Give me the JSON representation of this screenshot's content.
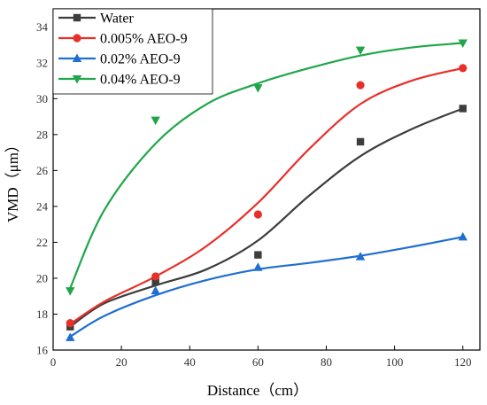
{
  "chart_data": {
    "type": "scatter",
    "title": "",
    "xlabel": "Distance（cm）",
    "ylabel": "VMD（μm）",
    "xlim": [
      0,
      125
    ],
    "ylim": [
      16,
      35
    ],
    "xticks": [
      0,
      20,
      40,
      60,
      80,
      100,
      120
    ],
    "yticks": [
      16,
      18,
      20,
      22,
      24,
      26,
      28,
      30,
      32,
      34
    ],
    "x": [
      5,
      30,
      60,
      90,
      120
    ],
    "grid": false,
    "legend_position": "top-left",
    "fitted_curves": true,
    "series": [
      {
        "name": "Water",
        "marker": "square",
        "color": "#3d3d3d",
        "values": [
          17.3,
          19.8,
          21.3,
          27.6,
          29.45
        ],
        "fit": [
          [
            5,
            17.3
          ],
          [
            15,
            18.6
          ],
          [
            30,
            19.6
          ],
          [
            45,
            20.5
          ],
          [
            60,
            22.1
          ],
          [
            75,
            24.6
          ],
          [
            90,
            26.8
          ],
          [
            105,
            28.3
          ],
          [
            120,
            29.45
          ]
        ]
      },
      {
        "name": "0.005% AEO-9",
        "marker": "circle",
        "color": "#e8302a",
        "values": [
          17.5,
          20.1,
          23.55,
          30.75,
          31.7
        ],
        "fit": [
          [
            5,
            17.45
          ],
          [
            15,
            18.7
          ],
          [
            30,
            20.1
          ],
          [
            45,
            21.8
          ],
          [
            60,
            24.2
          ],
          [
            75,
            27.2
          ],
          [
            90,
            29.7
          ],
          [
            105,
            31.0
          ],
          [
            120,
            31.7
          ]
        ]
      },
      {
        "name": "0.02% AEO-9",
        "marker": "triangle-up",
        "color": "#1f6fd1",
        "values": [
          16.7,
          19.3,
          20.6,
          21.2,
          22.3
        ],
        "fit": [
          [
            5,
            16.75
          ],
          [
            15,
            17.9
          ],
          [
            30,
            19.05
          ],
          [
            45,
            19.9
          ],
          [
            60,
            20.5
          ],
          [
            75,
            20.85
          ],
          [
            90,
            21.25
          ],
          [
            105,
            21.75
          ],
          [
            120,
            22.3
          ]
        ]
      },
      {
        "name": "0.04% AEO-9",
        "marker": "triangle-down",
        "color": "#1fa64a",
        "values": [
          19.3,
          28.8,
          30.6,
          32.7,
          33.1
        ],
        "fit": [
          [
            5,
            19.45
          ],
          [
            15,
            23.8
          ],
          [
            30,
            27.5
          ],
          [
            45,
            29.7
          ],
          [
            60,
            30.85
          ],
          [
            75,
            31.7
          ],
          [
            90,
            32.4
          ],
          [
            105,
            32.85
          ],
          [
            120,
            33.1
          ]
        ]
      }
    ]
  }
}
